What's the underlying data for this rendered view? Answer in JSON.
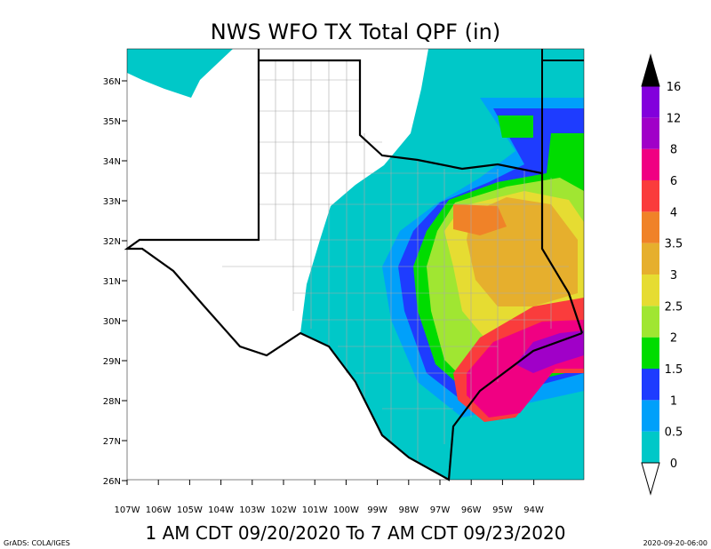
{
  "title": "NWS WFO TX Total QPF (in)",
  "period": "1 AM CDT 09/20/2020 To 7 AM CDT 09/23/2020",
  "credit": "GrADS: COLA/IGES",
  "timestamp": "2020-09-20-06:00",
  "map": {
    "lat_labels": [
      "36N",
      "35N",
      "34N",
      "33N",
      "32N",
      "31N",
      "30N",
      "29N",
      "28N",
      "27N",
      "26N"
    ],
    "lon_labels": [
      "107W",
      "106W",
      "105W",
      "104W",
      "103W",
      "102W",
      "101W",
      "100W",
      "99W",
      "98W",
      "97W",
      "96W",
      "95W",
      "94W"
    ]
  },
  "colorbar": {
    "labels": [
      "0",
      "0.5",
      "1",
      "1.5",
      "2",
      "2.5",
      "3",
      "3.5",
      "4",
      "6",
      "8",
      "12",
      "16"
    ],
    "colors": [
      "#00c8c8",
      "#00a0fa",
      "#1e3cff",
      "#00dc00",
      "#a0e632",
      "#e6dc32",
      "#e6af2d",
      "#f08228",
      "#fa3c3c",
      "#f00082",
      "#a000c8",
      "#8200dc"
    ],
    "over_color": "#000000",
    "under_color": "#ffffff"
  }
}
